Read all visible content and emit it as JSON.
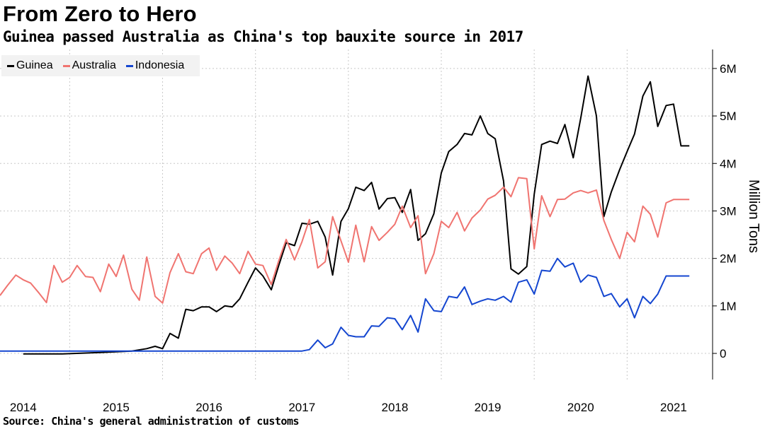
{
  "header": {
    "title": "From Zero to Hero",
    "subtitle": "Guinea passed Australia as China's top bauxite source in 2017"
  },
  "footer": {
    "source": "Source: China's general administration of customs"
  },
  "colors": {
    "Guinea": "#000000",
    "Australia": "#f07470",
    "Indonesia": "#1446d0",
    "grid": "#c8c8c8"
  },
  "chart_data": {
    "type": "line",
    "ylabel": "Million Tons",
    "ylim": [
      -0.55,
      6.4
    ],
    "yticks": [
      0,
      1,
      2,
      3,
      4,
      5,
      6
    ],
    "ytick_labels": [
      "0",
      "1M",
      "2M",
      "3M",
      "4M",
      "5M",
      "6M"
    ],
    "xlim": [
      2013.75,
      2021.42
    ],
    "xticks": [
      2014,
      2015,
      2016,
      2017,
      2018,
      2019,
      2020,
      2021
    ],
    "xtick_labels": [
      "2014",
      "2015",
      "2016",
      "2017",
      "2018",
      "2019",
      "2020",
      "2021"
    ],
    "grid": true,
    "legend": "top-left",
    "series": [
      {
        "name": "Guinea",
        "x": [
          2014.0,
          2014.42,
          2014.83,
          2015.17,
          2015.33,
          2015.42,
          2015.5,
          2015.58,
          2015.67,
          2015.75,
          2015.83,
          2015.92,
          2016.0,
          2016.08,
          2016.17,
          2016.25,
          2016.33,
          2016.42,
          2016.5,
          2016.58,
          2016.67,
          2016.75,
          2016.83,
          2016.92,
          2017.0,
          2017.08,
          2017.17,
          2017.25,
          2017.33,
          2017.42,
          2017.5,
          2017.58,
          2017.67,
          2017.75,
          2017.83,
          2017.92,
          2018.0,
          2018.08,
          2018.17,
          2018.25,
          2018.33,
          2018.42,
          2018.5,
          2018.58,
          2018.67,
          2018.75,
          2018.83,
          2018.92,
          2019.0,
          2019.08,
          2019.17,
          2019.25,
          2019.33,
          2019.42,
          2019.5,
          2019.58,
          2019.67,
          2019.75,
          2019.83,
          2019.92,
          2020.0,
          2020.08,
          2020.17,
          2020.25,
          2020.33,
          2020.42,
          2020.5,
          2020.58,
          2020.67,
          2020.75,
          2020.83,
          2020.92,
          2021.0,
          2021.08,
          2021.17
        ],
        "values": [
          -0.01,
          -0.01,
          0.02,
          0.05,
          0.1,
          0.15,
          0.1,
          0.42,
          0.32,
          0.93,
          0.9,
          0.98,
          0.98,
          0.88,
          1.0,
          0.98,
          1.15,
          1.5,
          1.8,
          1.63,
          1.34,
          1.85,
          2.33,
          2.27,
          2.74,
          2.72,
          2.78,
          2.45,
          1.65,
          2.78,
          3.05,
          3.5,
          3.43,
          3.6,
          3.04,
          3.26,
          3.28,
          2.97,
          3.45,
          2.38,
          2.52,
          2.94,
          3.8,
          4.25,
          4.4,
          4.63,
          4.6,
          5.0,
          4.63,
          4.52,
          3.63,
          1.78,
          1.67,
          1.83,
          3.35,
          4.4,
          4.47,
          4.42,
          4.82,
          4.12,
          4.95,
          5.84,
          5.0,
          2.88,
          3.4,
          3.87,
          4.25,
          4.62,
          5.42,
          5.72,
          4.78,
          5.22,
          5.25,
          4.37,
          4.37
        ]
      },
      {
        "name": "Australia",
        "x": [
          2013.75,
          2013.83,
          2013.92,
          2014.0,
          2014.08,
          2014.17,
          2014.25,
          2014.33,
          2014.42,
          2014.5,
          2014.58,
          2014.67,
          2014.75,
          2014.83,
          2014.92,
          2015.0,
          2015.08,
          2015.17,
          2015.25,
          2015.33,
          2015.42,
          2015.5,
          2015.58,
          2015.67,
          2015.75,
          2015.83,
          2015.92,
          2016.0,
          2016.08,
          2016.17,
          2016.25,
          2016.33,
          2016.42,
          2016.5,
          2016.58,
          2016.67,
          2016.75,
          2016.83,
          2016.92,
          2017.0,
          2017.08,
          2017.17,
          2017.25,
          2017.33,
          2017.42,
          2017.5,
          2017.58,
          2017.67,
          2017.75,
          2017.83,
          2017.92,
          2018.0,
          2018.08,
          2018.17,
          2018.25,
          2018.33,
          2018.42,
          2018.5,
          2018.58,
          2018.67,
          2018.75,
          2018.83,
          2018.92,
          2019.0,
          2019.08,
          2019.17,
          2019.25,
          2019.33,
          2019.42,
          2019.5,
          2019.58,
          2019.67,
          2019.75,
          2019.83,
          2019.92,
          2020.0,
          2020.08,
          2020.17,
          2020.25,
          2020.33,
          2020.42,
          2020.5,
          2020.58,
          2020.67,
          2020.75,
          2020.83,
          2020.92,
          2021.0,
          2021.08,
          2021.17
        ],
        "values": [
          1.22,
          1.43,
          1.65,
          1.55,
          1.48,
          1.27,
          1.07,
          1.85,
          1.5,
          1.6,
          1.85,
          1.62,
          1.6,
          1.3,
          1.88,
          1.62,
          2.07,
          1.35,
          1.12,
          2.03,
          1.2,
          1.06,
          1.7,
          2.1,
          1.72,
          1.68,
          2.1,
          2.22,
          1.75,
          2.05,
          1.9,
          1.68,
          2.15,
          1.88,
          1.85,
          1.45,
          1.95,
          2.4,
          1.97,
          2.35,
          2.82,
          1.8,
          1.93,
          2.88,
          2.37,
          1.92,
          2.7,
          1.93,
          2.67,
          2.38,
          2.55,
          2.72,
          3.1,
          2.65,
          2.9,
          1.68,
          2.1,
          2.78,
          2.65,
          2.97,
          2.58,
          2.85,
          3.02,
          3.25,
          3.33,
          3.5,
          3.3,
          3.7,
          3.68,
          2.2,
          3.32,
          2.88,
          3.24,
          3.25,
          3.38,
          3.43,
          3.38,
          3.44,
          2.8,
          2.4,
          2.0,
          2.55,
          2.35,
          3.1,
          2.93,
          2.45,
          3.17,
          3.24,
          3.24,
          3.24
        ]
      },
      {
        "name": "Indonesia",
        "x": [
          2013.75,
          2014.0,
          2014.5,
          2015.0,
          2015.5,
          2016.0,
          2016.5,
          2017.0,
          2017.08,
          2017.17,
          2017.25,
          2017.33,
          2017.42,
          2017.5,
          2017.58,
          2017.67,
          2017.75,
          2017.83,
          2017.92,
          2018.0,
          2018.08,
          2018.17,
          2018.25,
          2018.33,
          2018.42,
          2018.5,
          2018.58,
          2018.67,
          2018.75,
          2018.83,
          2018.92,
          2019.0,
          2019.08,
          2019.17,
          2019.25,
          2019.33,
          2019.42,
          2019.5,
          2019.58,
          2019.67,
          2019.75,
          2019.83,
          2019.92,
          2020.0,
          2020.08,
          2020.17,
          2020.25,
          2020.33,
          2020.42,
          2020.5,
          2020.58,
          2020.67,
          2020.75,
          2020.83,
          2020.92,
          2021.0,
          2021.08,
          2021.17
        ],
        "values": [
          0.05,
          0.05,
          0.05,
          0.05,
          0.05,
          0.05,
          0.05,
          0.05,
          0.08,
          0.28,
          0.12,
          0.2,
          0.55,
          0.38,
          0.35,
          0.35,
          0.58,
          0.57,
          0.75,
          0.73,
          0.5,
          0.8,
          0.45,
          1.15,
          0.9,
          0.88,
          1.2,
          1.17,
          1.4,
          1.03,
          1.1,
          1.15,
          1.12,
          1.2,
          1.08,
          1.5,
          1.55,
          1.25,
          1.75,
          1.73,
          2.0,
          1.82,
          1.9,
          1.5,
          1.65,
          1.6,
          1.2,
          1.26,
          0.98,
          1.15,
          0.75,
          1.2,
          1.05,
          1.25,
          1.63,
          1.63,
          1.63,
          1.63
        ]
      }
    ]
  }
}
